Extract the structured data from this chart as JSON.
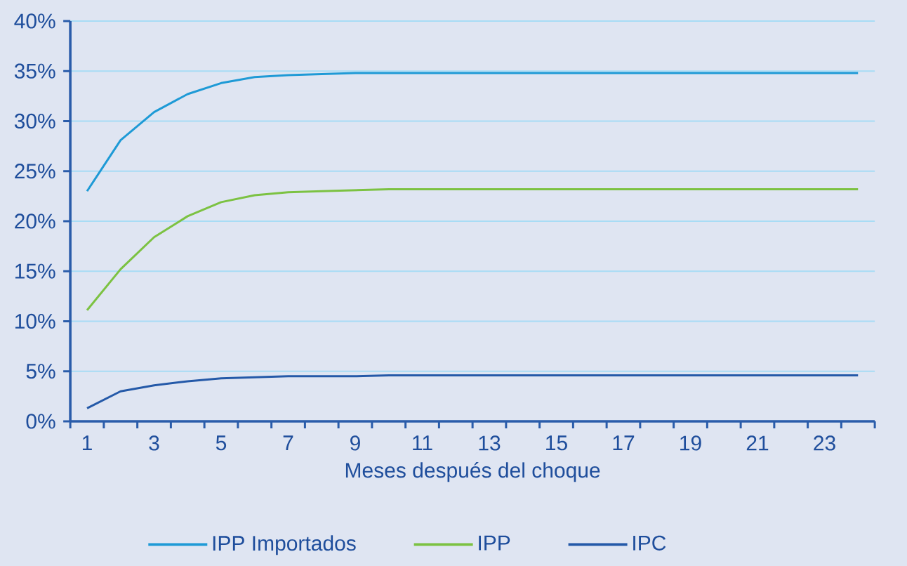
{
  "chart_data": {
    "type": "line",
    "xlabel": "Meses después del choque",
    "categories": [
      "1",
      null,
      "3",
      null,
      "5",
      null,
      "7",
      null,
      "9",
      null,
      "11",
      null,
      "13",
      null,
      "15",
      null,
      "17",
      null,
      "19",
      null,
      "21",
      null,
      "23",
      null
    ],
    "series": [
      {
        "name": "IPP Importados",
        "color": "#1e9ad6",
        "values": [
          23.0,
          28.1,
          30.9,
          32.7,
          33.8,
          34.4,
          34.6,
          34.7,
          34.8,
          34.8,
          34.8,
          34.8,
          34.8,
          34.8,
          34.8,
          34.8,
          34.8,
          34.8,
          34.8,
          34.8,
          34.8,
          34.8,
          34.8,
          34.8
        ]
      },
      {
        "name": "IPP",
        "color": "#7cc242",
        "values": [
          11.1,
          15.2,
          18.4,
          20.5,
          21.9,
          22.6,
          22.9,
          23.0,
          23.1,
          23.2,
          23.2,
          23.2,
          23.2,
          23.2,
          23.2,
          23.2,
          23.2,
          23.2,
          23.2,
          23.2,
          23.2,
          23.2,
          23.2,
          23.2
        ]
      },
      {
        "name": "IPC",
        "color": "#2459a8",
        "values": [
          1.3,
          3.0,
          3.6,
          4.0,
          4.3,
          4.4,
          4.5,
          4.5,
          4.5,
          4.6,
          4.6,
          4.6,
          4.6,
          4.6,
          4.6,
          4.6,
          4.6,
          4.6,
          4.6,
          4.6,
          4.6,
          4.6,
          4.6,
          4.6
        ]
      }
    ],
    "ylim": [
      0,
      40
    ],
    "yticks": [
      {
        "value": 0,
        "label": "0%"
      },
      {
        "value": 5,
        "label": "5%"
      },
      {
        "value": 10,
        "label": "10%"
      },
      {
        "value": 15,
        "label": "15%"
      },
      {
        "value": 20,
        "label": "20%"
      },
      {
        "value": 25,
        "label": "25%"
      },
      {
        "value": 30,
        "label": "30%"
      },
      {
        "value": 35,
        "label": "35%"
      },
      {
        "value": 40,
        "label": "40%"
      }
    ],
    "grid": "y",
    "legend": "bottom",
    "marker": "none",
    "line_style": "solid"
  }
}
